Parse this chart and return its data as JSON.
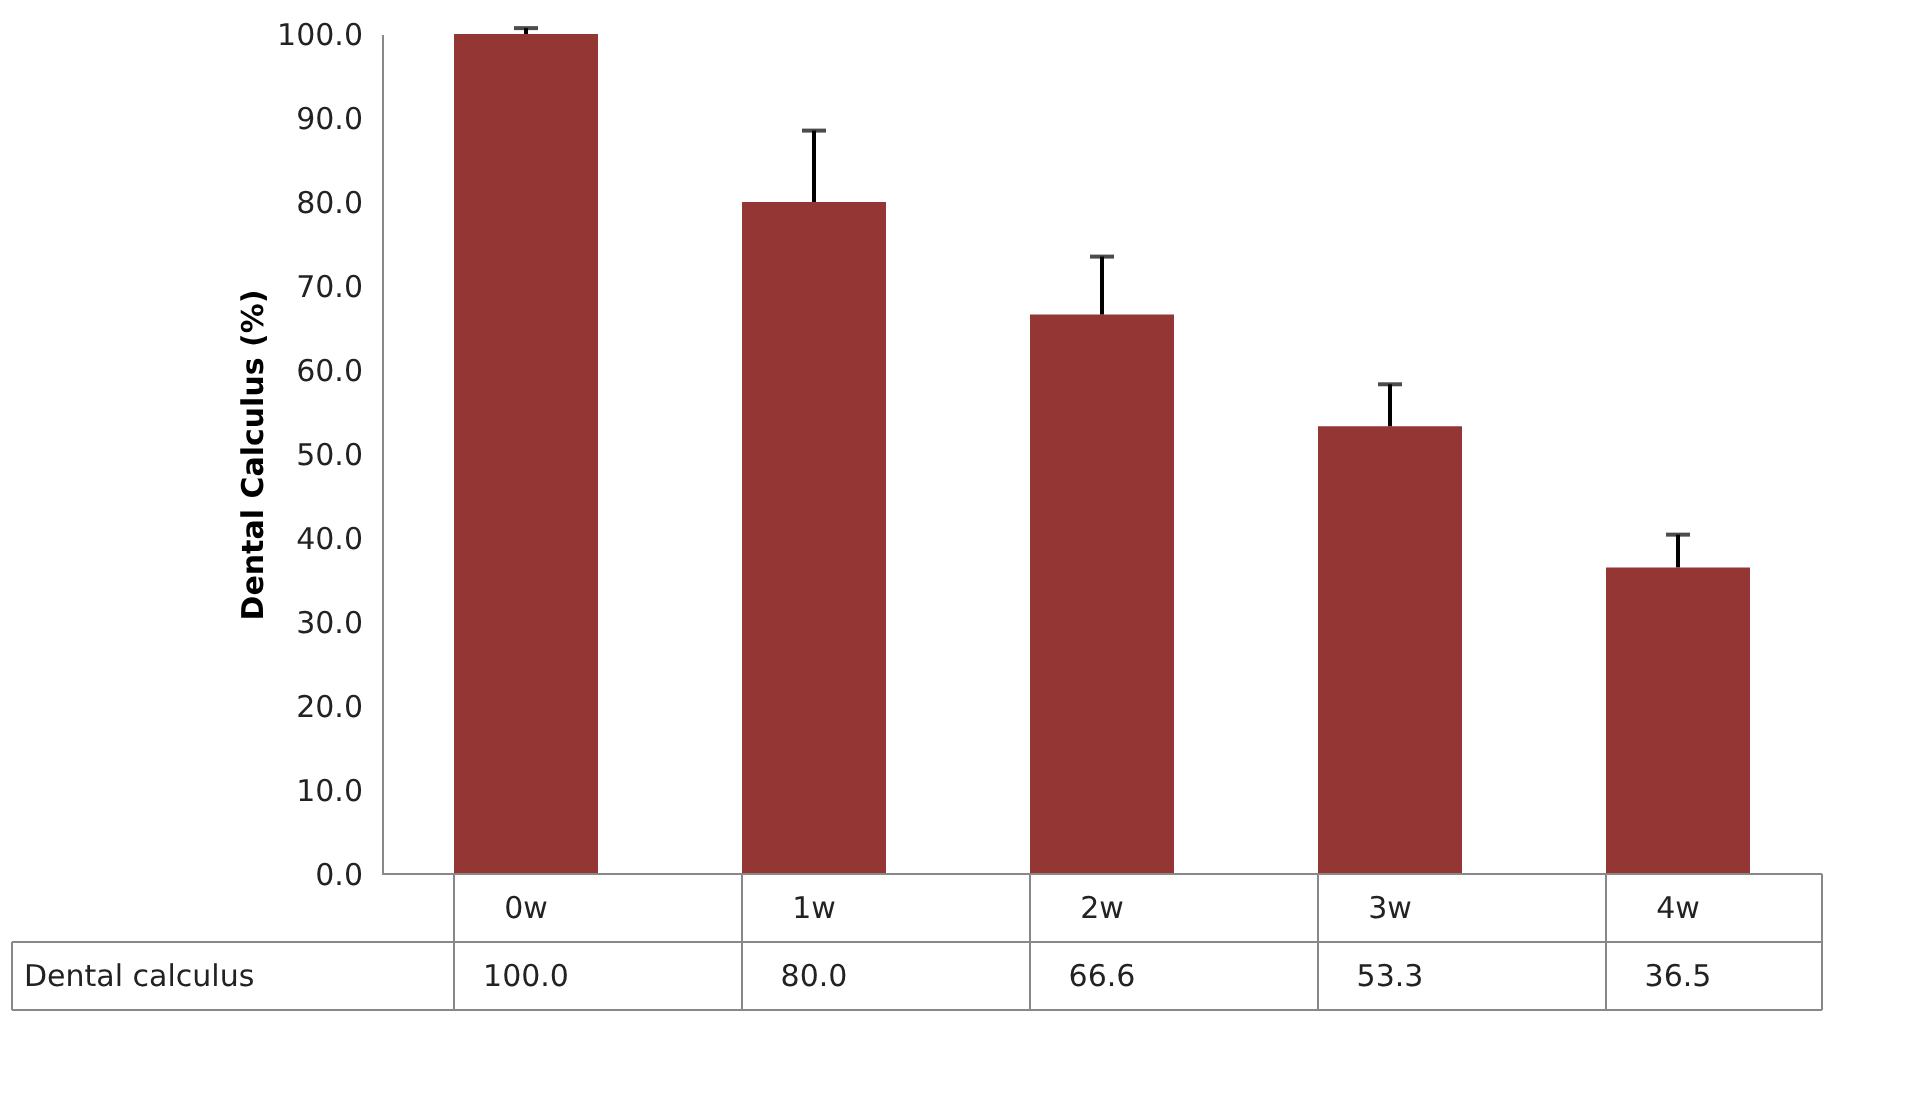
{
  "chart_data": {
    "type": "bar",
    "ylabel": "Dental Calculus  (%)",
    "categories": [
      "0w",
      "1w",
      "2w",
      "3w",
      "4w"
    ],
    "series": [
      {
        "name": "Dental calculus",
        "color": "#943634",
        "values": [
          100.0,
          80.0,
          66.6,
          53.3,
          36.5
        ],
        "value_labels": [
          "100.0",
          "80.0",
          "66.6",
          "53.3",
          "36.5"
        ],
        "errors": [
          [
            100.0,
            100.7
          ],
          [
            80.0,
            88.5
          ],
          [
            66.6,
            73.5
          ],
          [
            53.3,
            58.3
          ],
          [
            36.5,
            40.4
          ]
        ]
      }
    ],
    "ylim": [
      0,
      100
    ],
    "yticks": [
      {
        "value": 0,
        "label": "0.0"
      },
      {
        "value": 10,
        "label": "10.0"
      },
      {
        "value": 20,
        "label": "20.0"
      },
      {
        "value": 30,
        "label": "30.0"
      },
      {
        "value": 40,
        "label": "40.0"
      },
      {
        "value": 50,
        "label": "50.0"
      },
      {
        "value": 60,
        "label": "60.0"
      },
      {
        "value": 70,
        "label": "70.0"
      },
      {
        "value": 80,
        "label": "80.0"
      },
      {
        "value": 90,
        "label": "90.0"
      },
      {
        "value": 100,
        "label": "100.0"
      }
    ],
    "grid": false
  }
}
